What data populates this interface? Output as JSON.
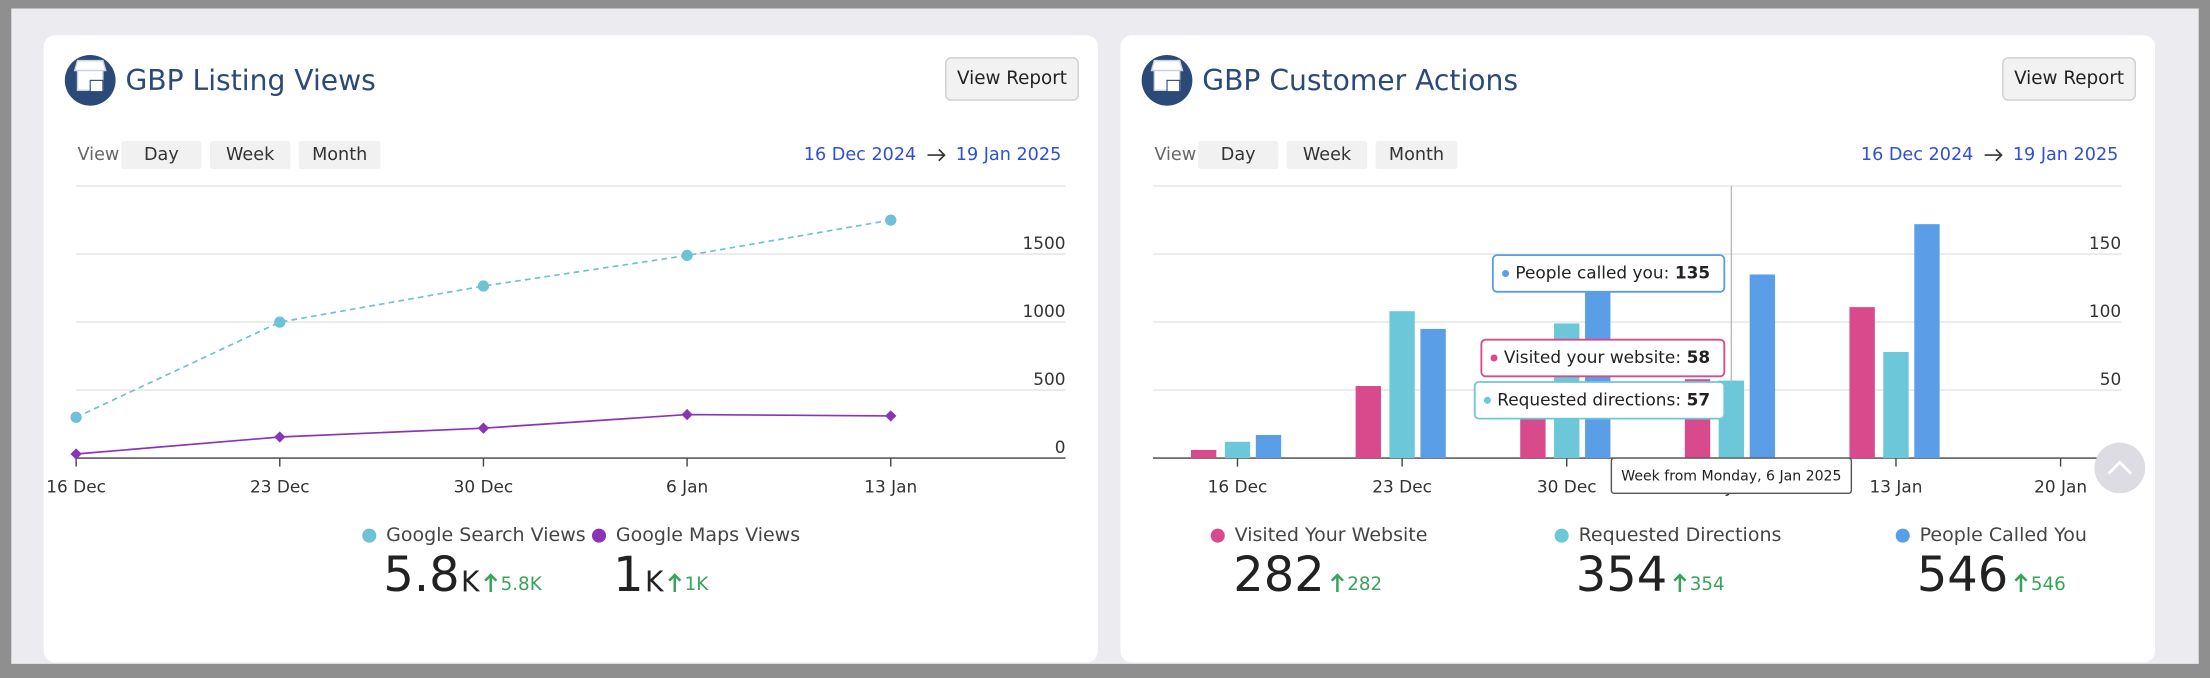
{
  "chart_data": [
    {
      "type": "line",
      "title": "GBP Listing Views",
      "categories": [
        "16 Dec",
        "23 Dec",
        "30 Dec",
        "6 Jan",
        "13 Jan"
      ],
      "series": [
        {
          "name": "Google Search Views",
          "color": "#6ec1d6",
          "values": [
            300,
            1000,
            1265,
            1490,
            1750
          ],
          "dashed": true,
          "marker": "circle"
        },
        {
          "name": "Google Maps Views",
          "color": "#8a35b8",
          "values": [
            30,
            155,
            220,
            320,
            310
          ],
          "dashed": false,
          "marker": "diamond"
        }
      ],
      "ylim": [
        0,
        2000
      ],
      "yticks": [
        0,
        500,
        1000,
        1500
      ],
      "grid": true
    },
    {
      "type": "bar",
      "title": "GBP Customer Actions",
      "categories": [
        "16 Dec",
        "23 Dec",
        "30 Dec",
        "6 Jan",
        "13 Jan",
        "20 Jan"
      ],
      "series": [
        {
          "name": "Visited Your Website",
          "tooltip_label": "Visited your website:",
          "color": "#d94a8c",
          "values": [
            6,
            53,
            54,
            58,
            111,
            0
          ]
        },
        {
          "name": "Requested Directions",
          "tooltip_label": "Requested directions:",
          "color": "#6cc8d9",
          "values": [
            12,
            108,
            99,
            57,
            78,
            0
          ]
        },
        {
          "name": "People Called You",
          "tooltip_label": "People called you:",
          "color": "#5b9ee8",
          "values": [
            17,
            95,
            127,
            135,
            172,
            0
          ]
        }
      ],
      "ylim": [
        0,
        200
      ],
      "yticks": [
        50,
        100,
        150
      ],
      "grid": true,
      "hover_index": 3,
      "tooltip_header": "Week from Monday, 6 Jan 2025"
    }
  ],
  "panels": [
    {
      "button": "View Report",
      "view_label": "View",
      "periods": [
        "Day",
        "Week",
        "Month"
      ],
      "date_from": "16 Dec 2024",
      "date_to": "19 Jan 2025",
      "stats": [
        {
          "value": "5.8",
          "unit": "K",
          "change": "5.8K"
        },
        {
          "value": "1",
          "unit": "K",
          "change": "1K"
        }
      ]
    },
    {
      "button": "View Report",
      "view_label": "View",
      "periods": [
        "Day",
        "Week",
        "Month"
      ],
      "date_from": "16 Dec 2024",
      "date_to": "19 Jan 2025",
      "stats": [
        {
          "value": "282",
          "unit": "",
          "change": "282"
        },
        {
          "value": "354",
          "unit": "",
          "change": "354"
        },
        {
          "value": "546",
          "unit": "",
          "change": "546"
        }
      ]
    }
  ]
}
